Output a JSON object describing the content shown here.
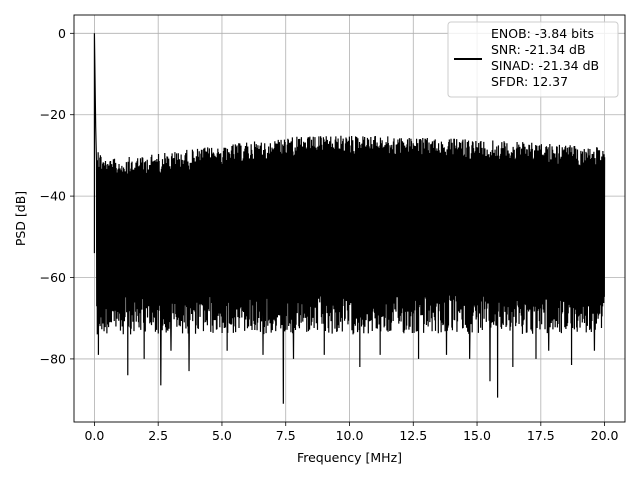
{
  "chart_data": {
    "type": "line",
    "xlabel": "Frequency [MHz]",
    "ylabel": "PSD [dB]",
    "xlim": [
      -0.8,
      20.8
    ],
    "ylim": [
      -95.5,
      4.5
    ],
    "xticks": [
      0.0,
      2.5,
      5.0,
      7.5,
      10.0,
      12.5,
      15.0,
      17.5,
      20.0
    ],
    "xtick_labels": [
      "0.0",
      "2.5",
      "5.0",
      "7.5",
      "10.0",
      "12.5",
      "15.0",
      "17.5",
      "20.0"
    ],
    "yticks": [
      0,
      -20,
      -40,
      -60,
      -80
    ],
    "ytick_labels": [
      "0",
      "−20",
      "−40",
      "−60",
      "−80"
    ],
    "grid": true,
    "legend_position": "top-right",
    "series": [
      {
        "color": "#000000",
        "peak": {
          "x": 0.0,
          "y": 0
        },
        "noise_floor_start": {
          "x": 0.05,
          "y": -23
        },
        "upper_envelope": [
          {
            "x": 0.1,
            "y": -28
          },
          {
            "x": 0.5,
            "y": -31
          },
          {
            "x": 2.5,
            "y": -29.5
          },
          {
            "x": 5.0,
            "y": -27.5
          },
          {
            "x": 7.5,
            "y": -25.5
          },
          {
            "x": 10.0,
            "y": -25
          },
          {
            "x": 12.5,
            "y": -25.5
          },
          {
            "x": 15.0,
            "y": -26
          },
          {
            "x": 17.5,
            "y": -27
          },
          {
            "x": 20.0,
            "y": -28
          }
        ],
        "typical_lower_bound": -72,
        "deep_dips": [
          {
            "x": 0.15,
            "y": -79
          },
          {
            "x": 1.3,
            "y": -84
          },
          {
            "x": 1.95,
            "y": -80
          },
          {
            "x": 2.6,
            "y": -86.5
          },
          {
            "x": 3.0,
            "y": -78
          },
          {
            "x": 3.7,
            "y": -83
          },
          {
            "x": 5.2,
            "y": -78
          },
          {
            "x": 6.6,
            "y": -79
          },
          {
            "x": 7.4,
            "y": -91
          },
          {
            "x": 7.8,
            "y": -80
          },
          {
            "x": 9.0,
            "y": -79
          },
          {
            "x": 10.4,
            "y": -82
          },
          {
            "x": 11.2,
            "y": -79
          },
          {
            "x": 12.7,
            "y": -80
          },
          {
            "x": 13.8,
            "y": -79
          },
          {
            "x": 14.7,
            "y": -80
          },
          {
            "x": 15.5,
            "y": -85.5
          },
          {
            "x": 15.8,
            "y": -89.5
          },
          {
            "x": 16.4,
            "y": -82
          },
          {
            "x": 17.3,
            "y": -80
          },
          {
            "x": 17.8,
            "y": -78
          },
          {
            "x": 18.7,
            "y": -81.5
          },
          {
            "x": 19.6,
            "y": -78
          }
        ]
      }
    ],
    "legend_lines": [
      "ENOB: -3.84 bits",
      "SNR: -21.34 dB",
      "SINAD: -21.34 dB",
      "SFDR: 12.37"
    ]
  }
}
